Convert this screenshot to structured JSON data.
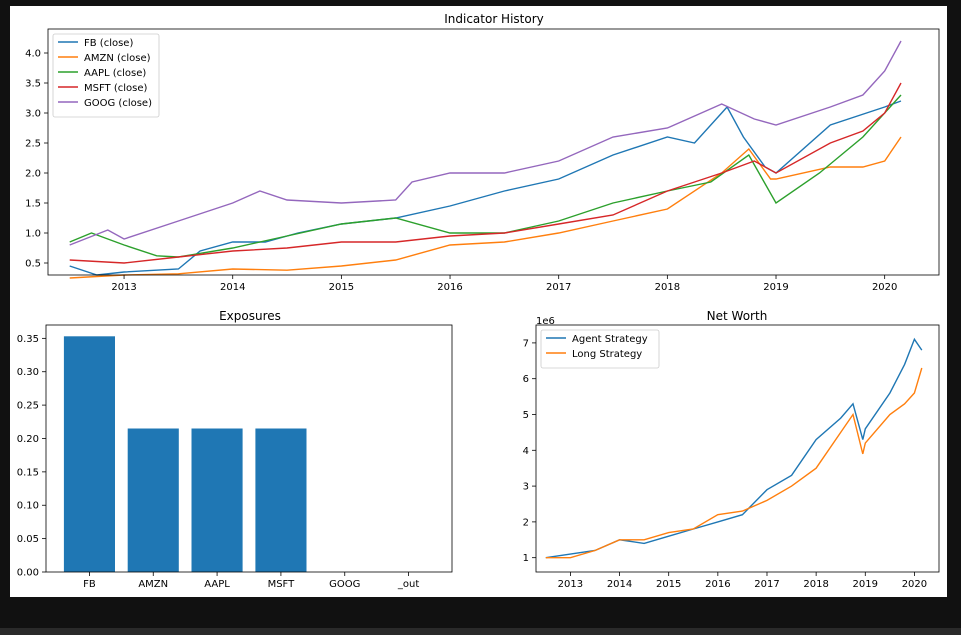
{
  "colors": {
    "blue": "#1f77b4",
    "orange": "#ff7f0e",
    "green": "#2ca02c",
    "red": "#d62728",
    "purple": "#9467bd"
  },
  "chart_data": [
    {
      "type": "line",
      "title": "Indicator History",
      "xlabel": "",
      "ylabel": "",
      "xlim": [
        2012.3,
        2020.5
      ],
      "ylim": [
        0.3,
        4.4
      ],
      "xticks": [
        2013,
        2014,
        2015,
        2016,
        2017,
        2018,
        2019,
        2020
      ],
      "xtick_labels": [
        "2013",
        "2014",
        "2015",
        "2016",
        "2017",
        "2018",
        "2019",
        "2020"
      ],
      "yticks": [
        0.5,
        1.0,
        1.5,
        2.0,
        2.5,
        3.0,
        3.5,
        4.0
      ],
      "ytick_labels": [
        "0.5",
        "1.0",
        "1.5",
        "2.0",
        "2.5",
        "3.0",
        "3.5",
        "4.0"
      ],
      "legend_position": "top-left",
      "series": [
        {
          "name": "FB (close)",
          "color": "#1f77b4",
          "x": [
            2012.5,
            2012.75,
            2013.0,
            2013.5,
            2013.7,
            2014.0,
            2014.3,
            2014.6,
            2015.0,
            2015.5,
            2016.0,
            2016.5,
            2017.0,
            2017.5,
            2018.0,
            2018.25,
            2018.55,
            2018.7,
            2018.9,
            2019.0,
            2019.5,
            2020.0,
            2020.15
          ],
          "y": [
            0.45,
            0.3,
            0.35,
            0.4,
            0.7,
            0.85,
            0.85,
            1.0,
            1.15,
            1.25,
            1.45,
            1.7,
            1.9,
            2.3,
            2.6,
            2.5,
            3.1,
            2.6,
            2.1,
            2.0,
            2.8,
            3.1,
            3.2
          ]
        },
        {
          "name": "AMZN (close)",
          "color": "#ff7f0e",
          "x": [
            2012.5,
            2013.0,
            2013.5,
            2014.0,
            2014.5,
            2015.0,
            2015.5,
            2016.0,
            2016.5,
            2017.0,
            2017.5,
            2018.0,
            2018.5,
            2018.75,
            2018.95,
            2019.0,
            2019.5,
            2019.8,
            2020.0,
            2020.15
          ],
          "y": [
            0.25,
            0.3,
            0.32,
            0.4,
            0.38,
            0.45,
            0.55,
            0.8,
            0.85,
            1.0,
            1.2,
            1.4,
            2.0,
            2.4,
            1.9,
            1.9,
            2.1,
            2.1,
            2.2,
            2.6
          ]
        },
        {
          "name": "AAPL (close)",
          "color": "#2ca02c",
          "x": [
            2012.5,
            2012.7,
            2013.0,
            2013.3,
            2013.5,
            2014.0,
            2014.5,
            2015.0,
            2015.5,
            2016.0,
            2016.5,
            2017.0,
            2017.5,
            2018.0,
            2018.4,
            2018.75,
            2019.0,
            2019.4,
            2019.8,
            2020.15
          ],
          "y": [
            0.85,
            1.0,
            0.8,
            0.62,
            0.6,
            0.75,
            0.95,
            1.15,
            1.25,
            1.0,
            1.0,
            1.2,
            1.5,
            1.7,
            1.85,
            2.3,
            1.5,
            2.0,
            2.6,
            3.3
          ]
        },
        {
          "name": "MSFT (close)",
          "color": "#d62728",
          "x": [
            2012.5,
            2013.0,
            2013.5,
            2014.0,
            2014.5,
            2015.0,
            2015.5,
            2016.0,
            2016.5,
            2017.0,
            2017.5,
            2018.0,
            2018.5,
            2018.8,
            2019.0,
            2019.5,
            2019.8,
            2020.0,
            2020.15
          ],
          "y": [
            0.55,
            0.5,
            0.6,
            0.7,
            0.75,
            0.85,
            0.85,
            0.95,
            1.0,
            1.15,
            1.3,
            1.7,
            2.0,
            2.2,
            2.0,
            2.5,
            2.7,
            3.0,
            3.5
          ]
        },
        {
          "name": "GOOG (close)",
          "color": "#9467bd",
          "x": [
            2012.5,
            2012.85,
            2013.0,
            2013.5,
            2014.0,
            2014.25,
            2014.5,
            2015.0,
            2015.5,
            2015.65,
            2016.0,
            2016.5,
            2017.0,
            2017.5,
            2018.0,
            2018.5,
            2018.8,
            2019.0,
            2019.5,
            2019.8,
            2020.0,
            2020.15
          ],
          "y": [
            0.8,
            1.05,
            0.9,
            1.2,
            1.5,
            1.7,
            1.55,
            1.5,
            1.55,
            1.85,
            2.0,
            2.0,
            2.2,
            2.6,
            2.75,
            3.15,
            2.9,
            2.8,
            3.1,
            3.3,
            3.7,
            4.2
          ]
        }
      ]
    },
    {
      "type": "bar",
      "title": "Exposures",
      "xlabel": "",
      "ylabel": "",
      "categories": [
        "FB",
        "AMZN",
        "AAPL",
        "MSFT",
        "GOOG",
        "_out"
      ],
      "values": [
        0.353,
        0.215,
        0.215,
        0.215,
        0.0,
        0.0
      ],
      "ylim": [
        0,
        0.37
      ],
      "yticks": [
        0.0,
        0.05,
        0.1,
        0.15,
        0.2,
        0.25,
        0.3,
        0.35
      ],
      "ytick_labels": [
        "0.00",
        "0.05",
        "0.10",
        "0.15",
        "0.20",
        "0.25",
        "0.30",
        "0.35"
      ],
      "color": "#1f77b4"
    },
    {
      "type": "line",
      "title": "Net Worth",
      "xlabel": "",
      "ylabel": "",
      "y_offset_label": "1e6",
      "xlim": [
        2012.3,
        2020.5
      ],
      "ylim": [
        0.6,
        7.5
      ],
      "xticks": [
        2013,
        2014,
        2015,
        2016,
        2017,
        2018,
        2019,
        2020
      ],
      "xtick_labels": [
        "2013",
        "2014",
        "2015",
        "2016",
        "2017",
        "2018",
        "2019",
        "2020"
      ],
      "yticks": [
        1,
        2,
        3,
        4,
        5,
        6,
        7
      ],
      "ytick_labels": [
        "1",
        "2",
        "3",
        "4",
        "5",
        "6",
        "7"
      ],
      "legend_position": "top-left",
      "series": [
        {
          "name": "Agent Strategy",
          "color": "#1f77b4",
          "x": [
            2012.5,
            2013.0,
            2013.5,
            2014.0,
            2014.5,
            2015.0,
            2015.5,
            2016.0,
            2016.5,
            2017.0,
            2017.5,
            2018.0,
            2018.5,
            2018.75,
            2018.95,
            2019.0,
            2019.5,
            2019.8,
            2020.0,
            2020.15
          ],
          "y": [
            1.0,
            1.1,
            1.2,
            1.5,
            1.4,
            1.6,
            1.8,
            2.0,
            2.2,
            2.9,
            3.3,
            4.3,
            4.9,
            5.3,
            4.3,
            4.6,
            5.6,
            6.4,
            7.1,
            6.8
          ]
        },
        {
          "name": "Long Strategy",
          "color": "#ff7f0e",
          "x": [
            2012.5,
            2013.0,
            2013.5,
            2014.0,
            2014.5,
            2015.0,
            2015.5,
            2016.0,
            2016.5,
            2017.0,
            2017.5,
            2018.0,
            2018.5,
            2018.75,
            2018.95,
            2019.0,
            2019.5,
            2019.8,
            2020.0,
            2020.15
          ],
          "y": [
            1.0,
            1.0,
            1.2,
            1.5,
            1.5,
            1.7,
            1.8,
            2.2,
            2.3,
            2.6,
            3.0,
            3.5,
            4.5,
            5.0,
            3.9,
            4.2,
            5.0,
            5.3,
            5.6,
            6.3
          ]
        }
      ]
    }
  ]
}
